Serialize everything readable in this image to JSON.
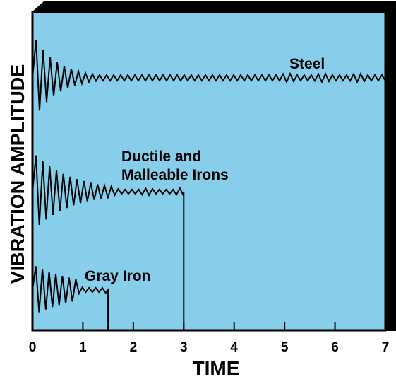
{
  "chart_data": {
    "type": "line",
    "title": "",
    "xlabel": "TIME",
    "ylabel": "VIBRATION AMPLITUDE",
    "xlim": [
      0,
      7
    ],
    "x_ticks": [
      "0",
      "1",
      "2",
      "3",
      "4",
      "5",
      "6",
      "7"
    ],
    "y_ticks": [],
    "grid": false,
    "legend": "none",
    "colors": {
      "plot_background": "#87CEEB",
      "frame": "#000000",
      "shadow": "#000000",
      "line": "#000000"
    },
    "series": [
      {
        "name": "Steel",
        "x_start": 0,
        "x_end": 7,
        "initial_amplitude": "large",
        "damping": "low"
      },
      {
        "name": "Ductile and Malleable Irons",
        "x_start": 0,
        "x_end": 3,
        "initial_amplitude": "medium",
        "damping": "medium"
      },
      {
        "name": "Gray Iron",
        "x_start": 0,
        "x_end": 1.5,
        "initial_amplitude": "small",
        "damping": "high"
      }
    ],
    "annotations": [
      "Steel",
      "Ductile and",
      "Malleable Irons",
      "Gray Iron"
    ]
  }
}
